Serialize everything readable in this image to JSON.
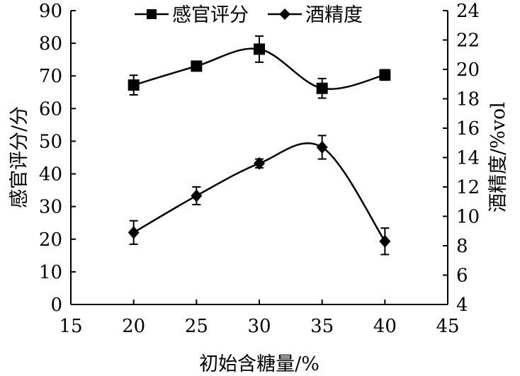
{
  "chart_data": {
    "type": "line",
    "xlabel": "初始含糖量/%",
    "ylabel_left": "感官评分/分",
    "ylabel_right": "酒精度/%vol",
    "xlim": [
      15,
      45
    ],
    "ylim_left": [
      0,
      90
    ],
    "ylim_right": [
      4,
      24
    ],
    "x_ticks": [
      15,
      20,
      25,
      30,
      35,
      40,
      45
    ],
    "y_left_ticks": [
      0,
      10,
      20,
      30,
      40,
      50,
      60,
      70,
      80,
      90
    ],
    "y_right_ticks": [
      4,
      6,
      8,
      10,
      12,
      14,
      16,
      18,
      20,
      22,
      24
    ],
    "grid": false,
    "legend_position": "top",
    "series": [
      {
        "name": "感官评分",
        "axis": "left",
        "marker": "square",
        "x": [
          20,
          25,
          30,
          35,
          40
        ],
        "values": [
          67.2,
          73.0,
          78.2,
          66.2,
          70.3
        ],
        "error": [
          3.0,
          1.3,
          4.0,
          3.0,
          1.6
        ]
      },
      {
        "name": "酒精度",
        "axis": "right",
        "marker": "diamond",
        "x": [
          20,
          25,
          30,
          35,
          40
        ],
        "values": [
          8.9,
          11.4,
          13.6,
          14.7,
          8.3
        ],
        "error": [
          0.8,
          0.6,
          0.3,
          0.8,
          0.9
        ]
      }
    ]
  }
}
